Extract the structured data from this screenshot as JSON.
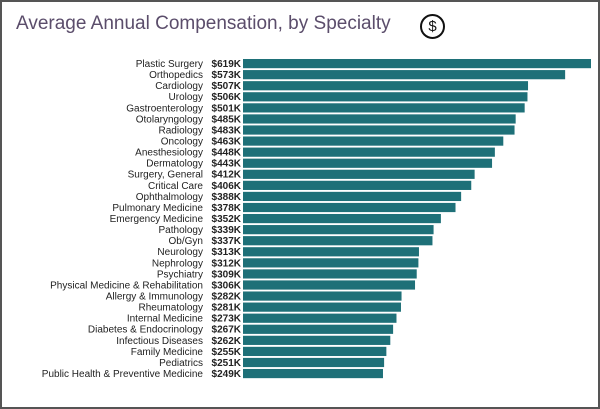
{
  "chart_data": {
    "type": "bar",
    "orientation": "horizontal",
    "title": "Average Annual Compensation, by Specialty",
    "title_icon": "dollar-circle-icon",
    "bar_color": "#1e7078",
    "title_color": "#5b4d6b",
    "grid": false,
    "xlim": [
      0,
      619
    ],
    "unit": "$K",
    "categories": [
      "Plastic Surgery",
      "Orthopedics",
      "Cardiology",
      "Urology",
      "Gastroenterology",
      "Otolaryngology",
      "Radiology",
      "Oncology",
      "Anesthesiology",
      "Dermatology",
      "Surgery, General",
      "Critical Care",
      "Ophthalmology",
      "Pulmonary Medicine",
      "Emergency Medicine",
      "Pathology",
      "Ob/Gyn",
      "Neurology",
      "Nephrology",
      "Psychiatry",
      "Physical Medicine & Rehabilitation",
      "Allergy & Immunology",
      "Rheumatology",
      "Internal Medicine",
      "Diabetes & Endocrinology",
      "Infectious Diseases",
      "Family Medicine",
      "Pediatrics",
      "Public Health & Preventive Medicine"
    ],
    "values": [
      619,
      573,
      507,
      506,
      501,
      485,
      483,
      463,
      448,
      443,
      412,
      406,
      388,
      378,
      352,
      339,
      337,
      313,
      312,
      309,
      306,
      282,
      281,
      273,
      267,
      262,
      255,
      251,
      249
    ],
    "value_labels": [
      "$619K",
      "$573K",
      "$507K",
      "$506K",
      "$501K",
      "$485K",
      "$483K",
      "$463K",
      "$448K",
      "$443K",
      "$412K",
      "$406K",
      "$388K",
      "$378K",
      "$352K",
      "$339K",
      "$337K",
      "$313K",
      "$312K",
      "$309K",
      "$306K",
      "$282K",
      "$281K",
      "$273K",
      "$267K",
      "$262K",
      "$255K",
      "$251K",
      "$249K"
    ]
  }
}
